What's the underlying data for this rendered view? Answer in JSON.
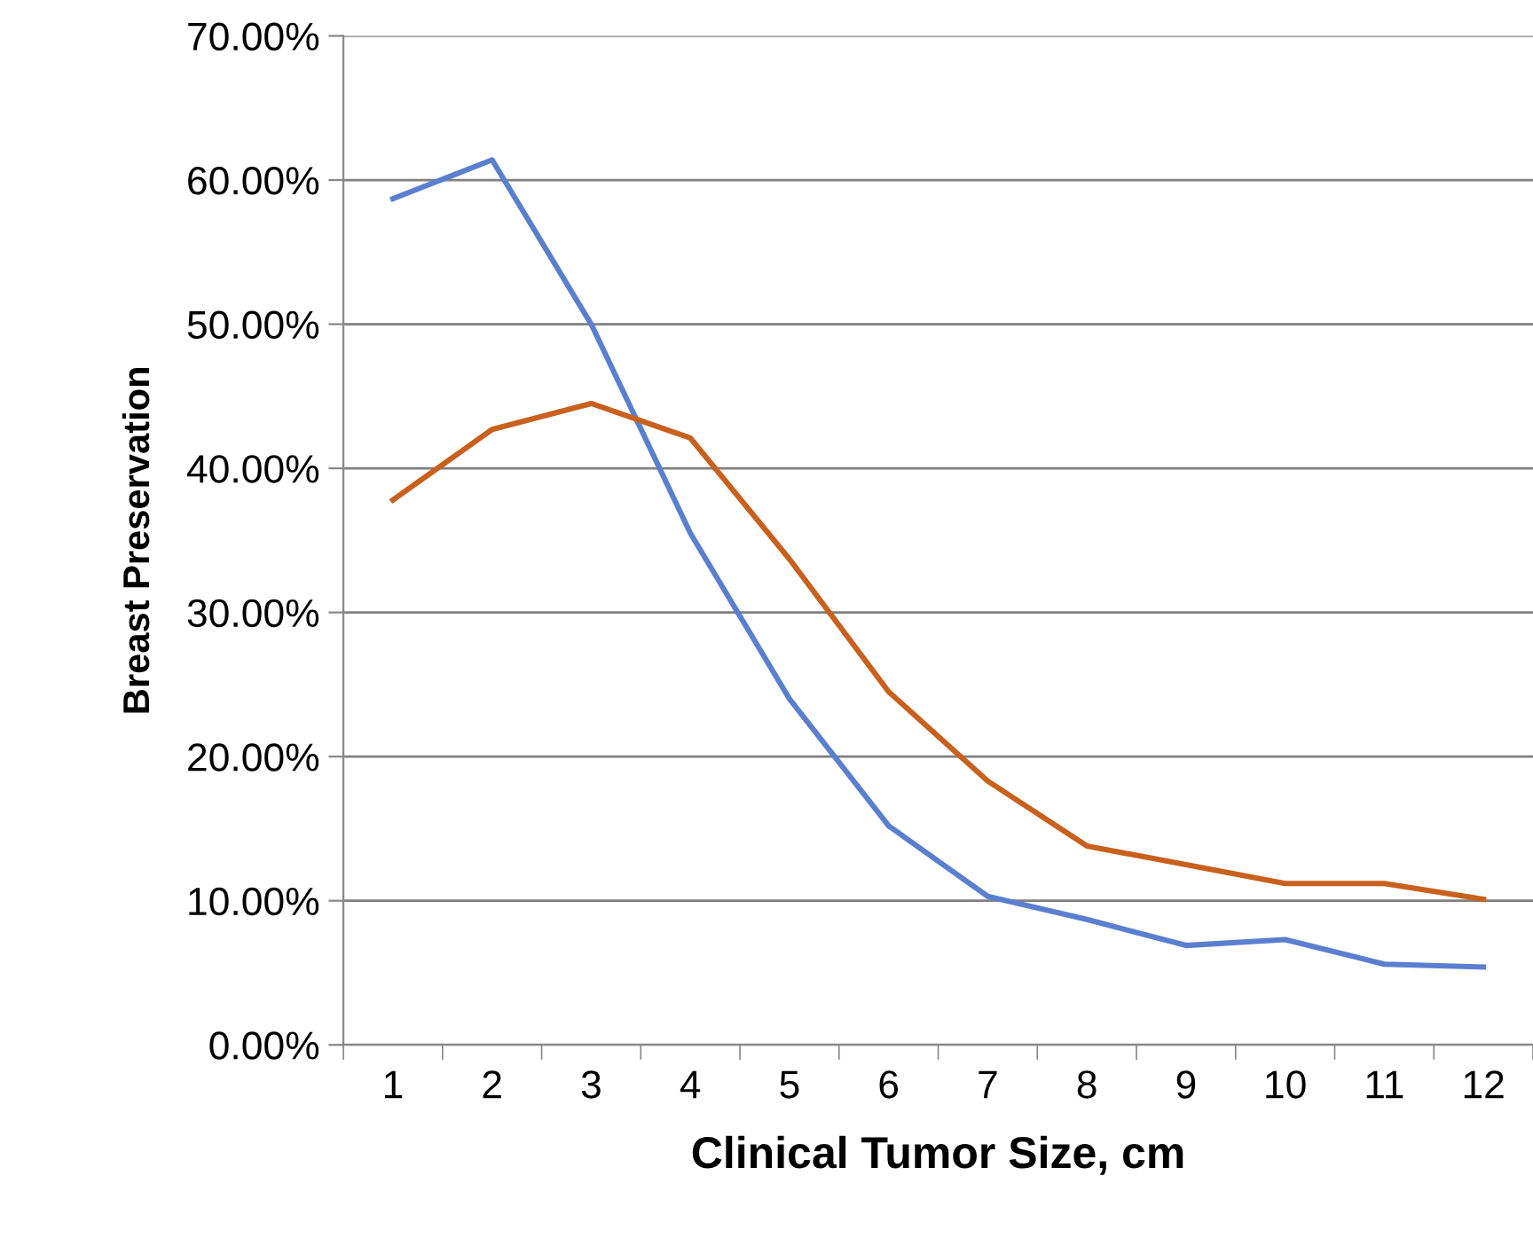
{
  "chart_data": {
    "type": "line",
    "xlabel": "Clinical Tumor Size, cm",
    "ylabel": "Breast Preservation",
    "categories": [
      "1",
      "2",
      "3",
      "4",
      "5",
      "6",
      "7",
      "8",
      "9",
      "10",
      "11",
      "12"
    ],
    "series": [
      {
        "color": "#5b7fcf",
        "values": [
          58.7,
          61.4,
          50.0,
          35.5,
          24.0,
          15.2,
          10.3,
          8.7,
          6.9,
          7.3,
          5.6,
          5.4
        ]
      },
      {
        "color": "#c8601e",
        "values": [
          37.8,
          42.7,
          44.5,
          42.1,
          33.7,
          24.5,
          18.3,
          13.8,
          12.5,
          11.2,
          11.2,
          10.1
        ]
      }
    ],
    "ylim": [
      0,
      70
    ],
    "yticks": [
      {
        "value": 0,
        "label": "0.00%"
      },
      {
        "value": 10,
        "label": "10.00%"
      },
      {
        "value": 20,
        "label": "20.00%"
      },
      {
        "value": 30,
        "label": "30.00%"
      },
      {
        "value": 40,
        "label": "40.00%"
      },
      {
        "value": 50,
        "label": "50.00%"
      },
      {
        "value": 60,
        "label": "60.00%"
      },
      {
        "value": 70,
        "label": "70.00%"
      }
    ],
    "grid": "y",
    "marker": "none",
    "line_style": "solid"
  }
}
